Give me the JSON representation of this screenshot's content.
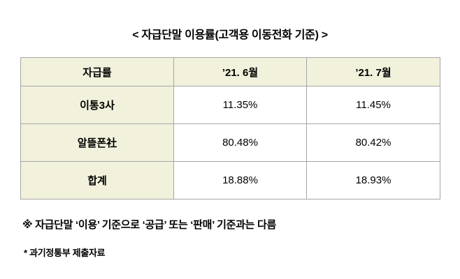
{
  "title": "< 자급단말 이용률(고객용 이동전화 기준) >",
  "table": {
    "header": [
      "자급률",
      "’21. 6월",
      "’21. 7월"
    ],
    "rows": [
      {
        "label": "이통3사",
        "values": [
          "11.35%",
          "11.45%"
        ]
      },
      {
        "label": "알뜰폰社",
        "values": [
          "80.48%",
          "80.42%"
        ]
      },
      {
        "label": "합계",
        "values": [
          "18.88%",
          "18.93%"
        ]
      }
    ]
  },
  "footnotes": [
    "※ 자급단말 ‘이용’ 기준으로 ‘공급’ 또는 ‘판매’ 기준과는 다름",
    "* 과기정통부 제출자료"
  ],
  "colors": {
    "header_bg": "#f1f1dc",
    "border": "#a6a6a6",
    "text": "#000000",
    "page_bg": "#ffffff"
  }
}
